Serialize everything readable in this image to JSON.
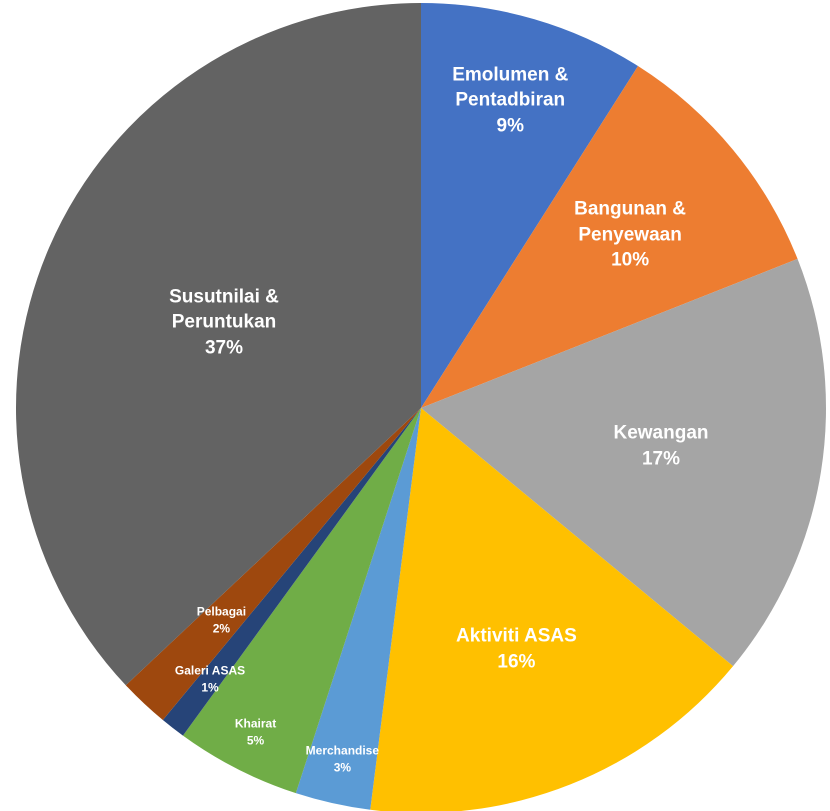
{
  "chart_data": {
    "type": "pie",
    "categories": [
      "Emolumen & Pentadbiran",
      "Bangunan & Penyewaan",
      "Kewangan",
      "Aktiviti ASAS",
      "Merchandise",
      "Khairat",
      "Galeri ASAS",
      "Pelbagai",
      "Susutnilai & Peruntukan"
    ],
    "values": [
      9,
      10,
      17,
      16,
      3,
      5,
      1,
      2,
      37
    ],
    "value_labels": [
      "9%",
      "10%",
      "17%",
      "16%",
      "3%",
      "5%",
      "1%",
      "2%",
      "37%"
    ],
    "colors": [
      "#4472c4",
      "#ed7d31",
      "#a5a5a5",
      "#ffc000",
      "#5b9bd5",
      "#70ad47",
      "#264478",
      "#9e480e",
      "#636363"
    ]
  }
}
